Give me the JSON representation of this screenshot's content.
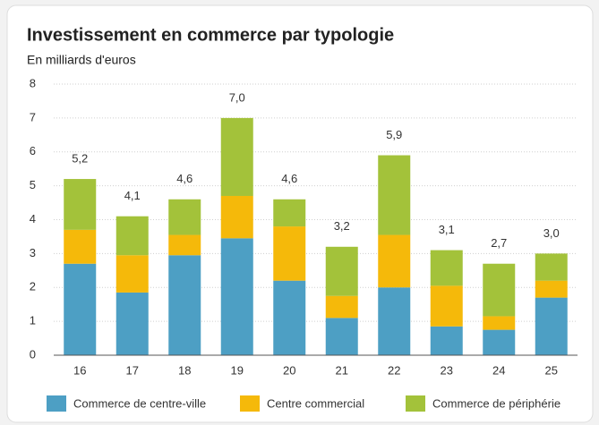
{
  "chart_data": {
    "type": "stacked_bar",
    "title": "Investissement en commerce par typologie",
    "subtitle": "En milliards d'euros",
    "categories": [
      "16",
      "17",
      "18",
      "19",
      "20",
      "21",
      "22",
      "23",
      "24",
      "25"
    ],
    "series": [
      {
        "name": "Commerce de centre-ville",
        "color": "#4d9fc4",
        "values": [
          2.7,
          1.85,
          2.95,
          3.45,
          2.2,
          1.1,
          2.0,
          0.85,
          0.75,
          1.7
        ]
      },
      {
        "name": "Centre commercial",
        "color": "#f5b90a",
        "values": [
          1.0,
          1.1,
          0.6,
          1.25,
          1.6,
          0.65,
          1.55,
          1.2,
          0.4,
          0.5
        ]
      },
      {
        "name": "Commerce de périphérie",
        "color": "#a3c23a",
        "values": [
          1.5,
          1.15,
          1.05,
          2.3,
          0.8,
          1.45,
          2.35,
          1.05,
          1.55,
          0.8
        ]
      }
    ],
    "totals": [
      5.2,
      4.1,
      4.6,
      7.0,
      4.6,
      3.2,
      5.9,
      3.1,
      2.7,
      3.0
    ],
    "total_labels": [
      "5,2",
      "4,1",
      "4,6",
      "7,0",
      "4,6",
      "3,2",
      "5,9",
      "3,1",
      "2,7",
      "3,0"
    ],
    "ylim": [
      0,
      8
    ],
    "yticks": [
      0,
      1,
      2,
      3,
      4,
      5,
      6,
      7,
      8
    ],
    "grid": true
  }
}
